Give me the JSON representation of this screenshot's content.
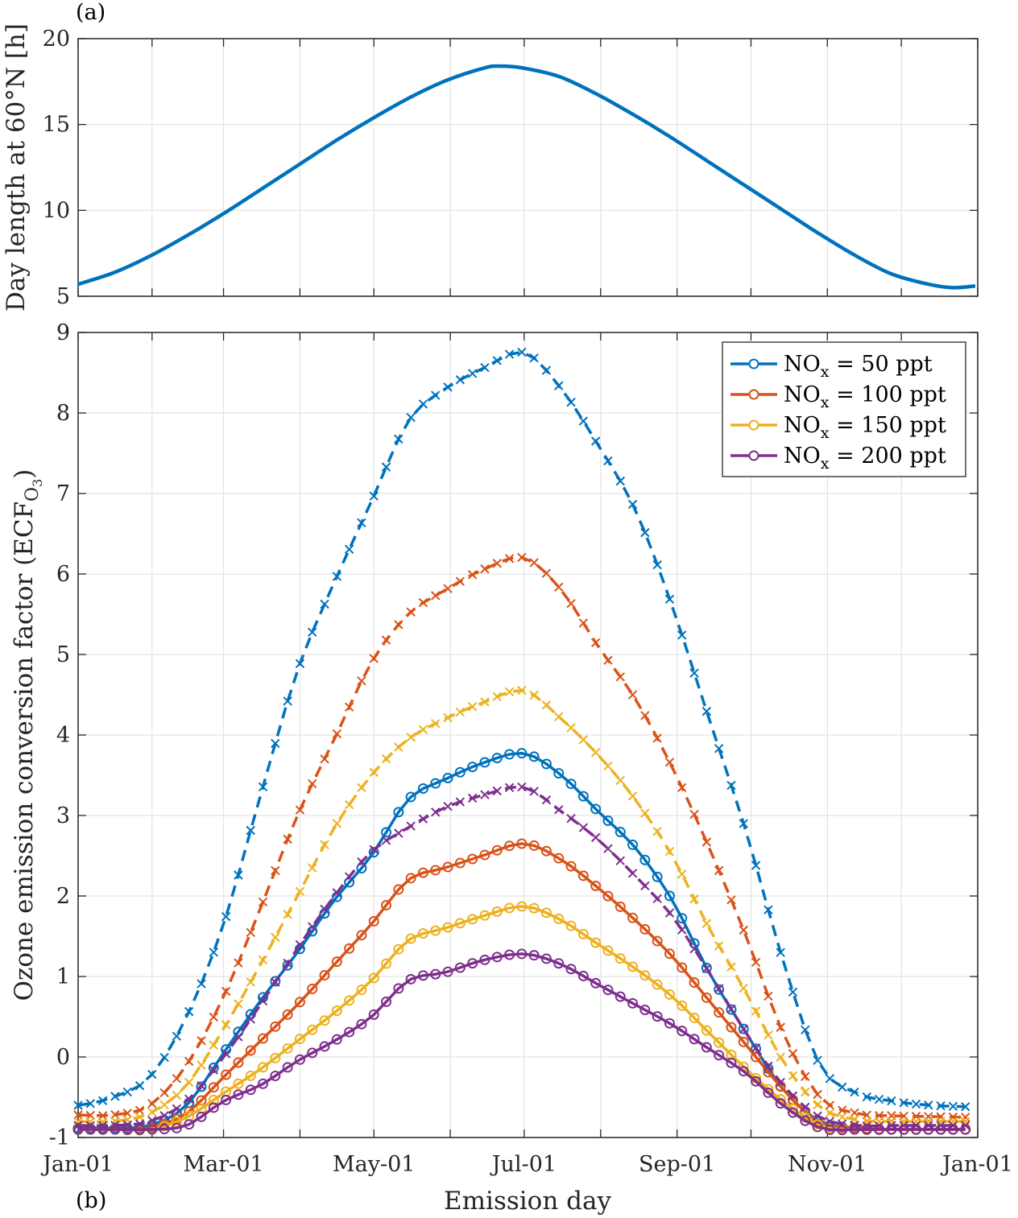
{
  "figure": {
    "panel_a_label": "(a)",
    "panel_b_label": "(b)"
  },
  "chart_data": [
    {
      "type": "line",
      "panel": "(a)",
      "ylabel": "Day length at 60°N [h]",
      "xlabel": "",
      "ylim": [
        5,
        20
      ],
      "yticks": [
        "5",
        "10",
        "15",
        "20"
      ],
      "xticks": [
        "Jan-01",
        "Mar-01",
        "May-01",
        "Jul-01",
        "Sep-01",
        "Nov-01",
        "Jan-01"
      ],
      "grid": true,
      "series": [
        {
          "color": "#0072BD",
          "x_day": [
            1,
            16,
            31,
            46,
            61,
            76,
            91,
            106,
            121,
            136,
            151,
            166,
            172,
            181,
            196,
            211,
            226,
            241,
            256,
            271,
            286,
            301,
            316,
            331,
            346,
            356,
            365
          ],
          "values": [
            5.7,
            6.4,
            7.4,
            8.6,
            9.9,
            11.3,
            12.7,
            14.1,
            15.4,
            16.6,
            17.6,
            18.3,
            18.4,
            18.3,
            17.8,
            16.8,
            15.6,
            14.3,
            12.9,
            11.5,
            10.1,
            8.7,
            7.4,
            6.3,
            5.7,
            5.5,
            5.6
          ]
        }
      ]
    },
    {
      "type": "line",
      "panel": "(b)",
      "xlabel": "Emission day",
      "ylabel": "Ozone emission conversion factor (ECF",
      "ylabel_sub": "O",
      "ylabel_subsub": "3",
      "ylabel_end": ")",
      "ylim": [
        -1,
        9
      ],
      "yticks": [
        "-1",
        "0",
        "1",
        "2",
        "3",
        "4",
        "5",
        "6",
        "7",
        "8",
        "9"
      ],
      "xticks": [
        "Jan-01",
        "Mar-01",
        "May-01",
        "Jul-01",
        "Sep-01",
        "Nov-01",
        "Jan-01"
      ],
      "grid": true,
      "legend_placement": "top-right",
      "legend": [
        {
          "prefix": "NO",
          "sub": "x",
          "suffix": " = 50 ppt",
          "color": "#0072BD"
        },
        {
          "prefix": "NO",
          "sub": "x",
          "suffix": " = 100 ppt",
          "color": "#D95319"
        },
        {
          "prefix": "NO",
          "sub": "x",
          "suffix": " = 150 ppt",
          "color": "#EDB120"
        },
        {
          "prefix": "NO",
          "sub": "x",
          "suffix": " = 200 ppt",
          "color": "#7E2F8E"
        }
      ],
      "x_day": [
        1,
        15,
        30,
        45,
        60,
        75,
        90,
        105,
        120,
        135,
        150,
        165,
        182,
        197,
        212,
        227,
        242,
        257,
        272,
        287,
        302,
        317,
        332,
        347,
        365
      ],
      "series": [
        {
          "group": "NOx = 50 ppt",
          "style": "solid-circle",
          "color": "#0072BD",
          "values": [
            -0.88,
            -0.88,
            -0.85,
            -0.6,
            0.05,
            0.7,
            1.3,
            1.95,
            2.5,
            3.2,
            3.45,
            3.65,
            3.77,
            3.5,
            3.05,
            2.6,
            1.95,
            1.05,
            0.3,
            -0.4,
            -0.8,
            -0.88,
            -0.9,
            -0.9,
            -0.9
          ]
        },
        {
          "group": "NOx = 50 ppt",
          "style": "dashed-cross",
          "color": "#0072BD",
          "values": [
            -0.6,
            -0.5,
            -0.25,
            0.5,
            1.65,
            3.25,
            4.8,
            5.9,
            6.9,
            7.9,
            8.3,
            8.55,
            8.75,
            8.3,
            7.6,
            6.8,
            5.6,
            4.2,
            2.8,
            1.2,
            -0.1,
            -0.45,
            -0.55,
            -0.6,
            -0.62
          ]
        },
        {
          "group": "NOx = 100 ppt",
          "style": "solid-circle",
          "color": "#D95319",
          "values": [
            -0.9,
            -0.9,
            -0.88,
            -0.7,
            -0.25,
            0.2,
            0.65,
            1.15,
            1.65,
            2.2,
            2.35,
            2.5,
            2.65,
            2.45,
            2.1,
            1.7,
            1.25,
            0.7,
            0.15,
            -0.4,
            -0.82,
            -0.88,
            -0.9,
            -0.9,
            -0.9
          ]
        },
        {
          "group": "NOx = 100 ppt",
          "style": "dashed-cross",
          "color": "#D95319",
          "values": [
            -0.72,
            -0.72,
            -0.6,
            -0.1,
            0.75,
            1.85,
            3.0,
            3.95,
            4.9,
            5.5,
            5.8,
            6.05,
            6.2,
            5.8,
            5.1,
            4.45,
            3.6,
            2.6,
            1.5,
            0.3,
            -0.5,
            -0.7,
            -0.73,
            -0.74,
            -0.75
          ]
        },
        {
          "group": "NOx = 150 ppt",
          "style": "solid-circle",
          "color": "#EDB120",
          "values": [
            -0.9,
            -0.9,
            -0.9,
            -0.75,
            -0.45,
            -0.15,
            0.2,
            0.55,
            0.95,
            1.45,
            1.6,
            1.75,
            1.87,
            1.7,
            1.4,
            1.1,
            0.75,
            0.3,
            -0.15,
            -0.55,
            -0.85,
            -0.9,
            -0.9,
            -0.9,
            -0.9
          ]
        },
        {
          "group": "NOx = 150 ppt",
          "style": "dashed-cross",
          "color": "#EDB120",
          "values": [
            -0.8,
            -0.8,
            -0.7,
            -0.35,
            0.35,
            1.15,
            2.0,
            2.85,
            3.5,
            3.95,
            4.2,
            4.4,
            4.55,
            4.2,
            3.75,
            3.2,
            2.5,
            1.6,
            0.8,
            -0.05,
            -0.62,
            -0.78,
            -0.8,
            -0.8,
            -0.8
          ]
        },
        {
          "group": "NOx = 200 ppt",
          "style": "solid-circle",
          "color": "#7E2F8E",
          "values": [
            -0.9,
            -0.9,
            -0.9,
            -0.85,
            -0.55,
            -0.35,
            -0.05,
            0.2,
            0.5,
            0.95,
            1.05,
            1.2,
            1.28,
            1.15,
            0.9,
            0.65,
            0.4,
            0.1,
            -0.2,
            -0.6,
            -0.88,
            -0.9,
            -0.9,
            -0.9,
            -0.9
          ]
        },
        {
          "group": "NOx = 200 ppt",
          "style": "dashed-cross",
          "color": "#7E2F8E",
          "values": [
            -0.85,
            -0.85,
            -0.8,
            -0.55,
            0.0,
            0.65,
            1.35,
            2.0,
            2.55,
            2.85,
            3.1,
            3.25,
            3.35,
            3.05,
            2.7,
            2.25,
            1.75,
            1.05,
            0.3,
            -0.35,
            -0.75,
            -0.85,
            -0.85,
            -0.85,
            -0.85
          ]
        }
      ]
    }
  ]
}
